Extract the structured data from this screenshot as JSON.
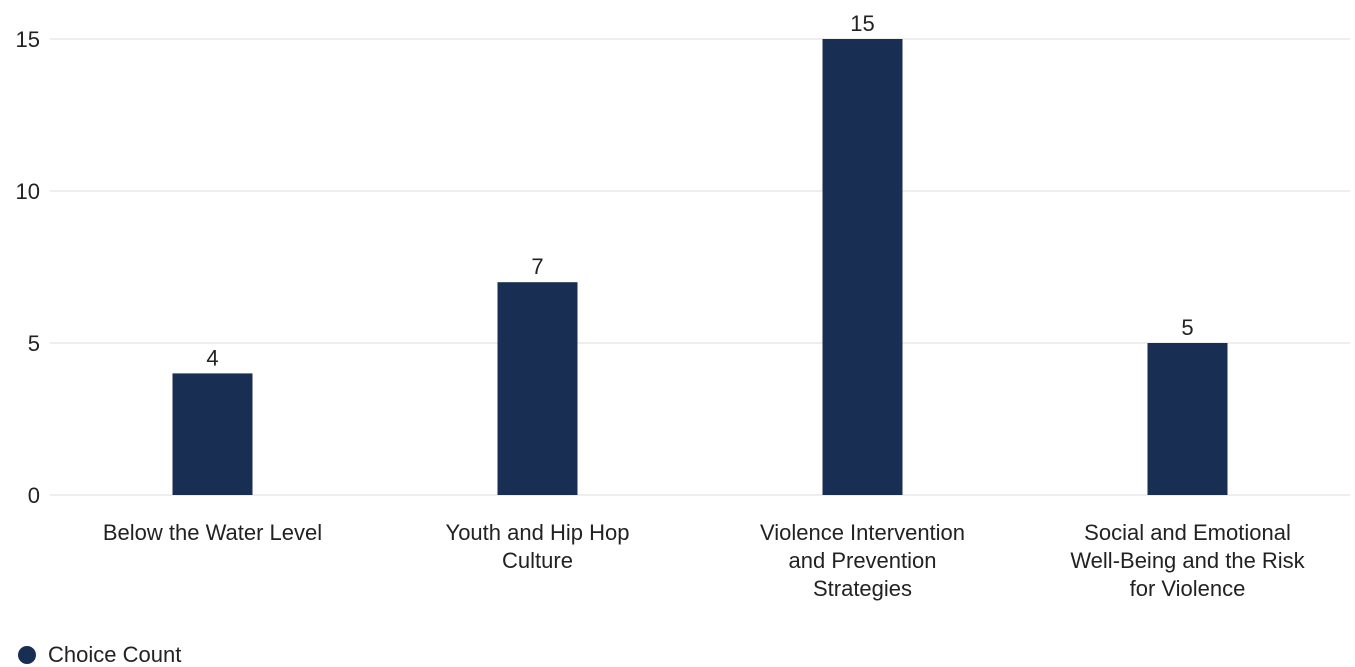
{
  "chart_data": {
    "type": "bar",
    "categories": [
      [
        "Below the Water Level"
      ],
      [
        "Youth and Hip Hop",
        "Culture"
      ],
      [
        "Violence Intervention",
        "and Prevention",
        "Strategies"
      ],
      [
        "Social and Emotional",
        "Well-Being and the Risk",
        "for Violence"
      ]
    ],
    "series": [
      {
        "name": "Choice Count",
        "values": [
          4,
          7,
          15,
          5
        ]
      }
    ],
    "ylim": [
      0,
      15
    ],
    "yticks": [
      0,
      5,
      10,
      15
    ],
    "grid": true,
    "legend": "bottom-left",
    "bar_color": "#182e52",
    "grid_color": "#dcdcdc"
  }
}
